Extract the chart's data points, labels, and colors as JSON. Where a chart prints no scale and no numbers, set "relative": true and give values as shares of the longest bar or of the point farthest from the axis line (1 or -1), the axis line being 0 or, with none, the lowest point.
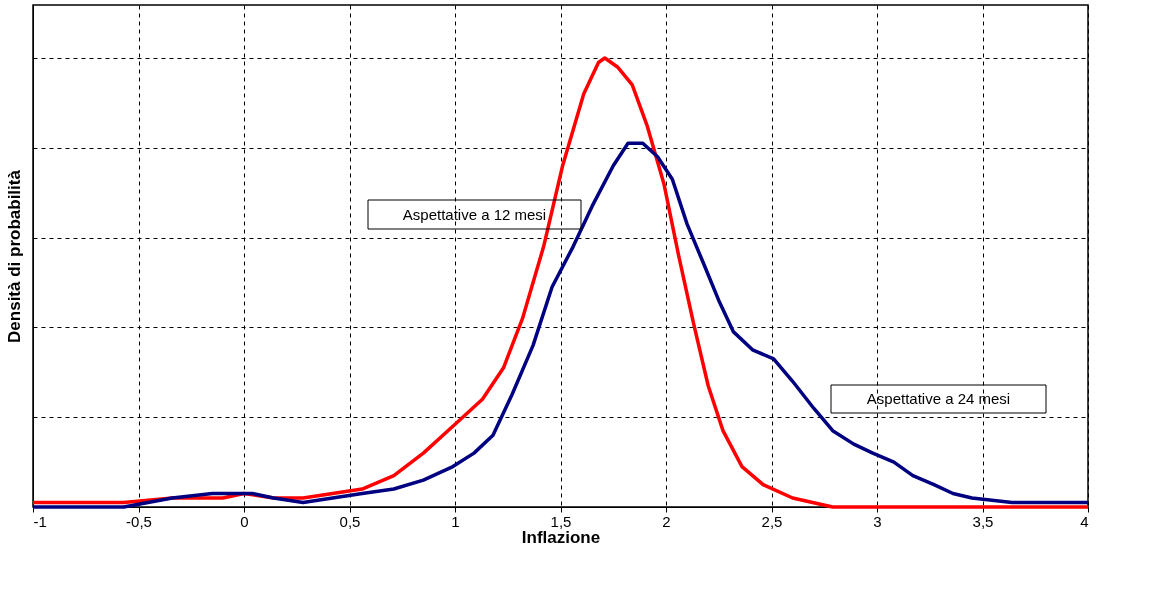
{
  "chart_data": {
    "type": "line",
    "xlabel": "Inflazione",
    "ylabel": "Densità di probabilità",
    "relative": true,
    "grid": true,
    "legend": false,
    "line_style": "solid",
    "marker": "none",
    "xlim": [
      -1,
      4
    ],
    "xticks": [
      -1,
      {
        "value": -0.5,
        "label": "-0,5"
      },
      0,
      {
        "value": 0.5,
        "label": "0,5"
      },
      1,
      {
        "value": 1.5,
        "label": "1,5"
      },
      2,
      {
        "value": 2.5,
        "label": "2,5"
      },
      3,
      {
        "value": 3.5,
        "label": "3,5"
      },
      4
    ],
    "series": [
      {
        "name": "Aspettative a 12 mesi",
        "color": "#ff0000",
        "x": [
          -1,
          -0.57,
          -0.34,
          -0.1,
          0.0,
          0.14,
          0.28,
          0.42,
          0.56,
          0.71,
          0.85,
          0.99,
          1.13,
          1.23,
          1.32,
          1.42,
          1.51,
          1.61,
          1.68,
          1.71,
          1.77,
          1.84,
          1.91,
          1.99,
          2.06,
          2.13,
          2.2,
          2.27,
          2.36,
          2.46,
          2.6,
          2.79,
          2.98,
          4
        ],
        "values": [
          0.01,
          0.01,
          0.02,
          0.02,
          0.03,
          0.02,
          0.02,
          0.03,
          0.04,
          0.07,
          0.12,
          0.18,
          0.24,
          0.31,
          0.42,
          0.58,
          0.76,
          0.92,
          0.99,
          1,
          0.98,
          0.94,
          0.85,
          0.72,
          0.56,
          0.41,
          0.27,
          0.17,
          0.09,
          0.05,
          0.02,
          0.0,
          0,
          0
        ]
      },
      {
        "name": "Aspettative a 24 mesi",
        "color": "#000080",
        "x": [
          -1,
          -0.57,
          -0.34,
          -0.15,
          0.04,
          0.14,
          0.28,
          0.42,
          0.56,
          0.71,
          0.85,
          0.99,
          1.09,
          1.18,
          1.27,
          1.37,
          1.46,
          1.56,
          1.65,
          1.75,
          1.82,
          1.89,
          1.96,
          2.03,
          2.1,
          2.18,
          2.25,
          2.32,
          2.41,
          2.51,
          2.6,
          2.7,
          2.79,
          2.89,
          2.98,
          3.08,
          3.17,
          3.27,
          3.36,
          3.45,
          3.64,
          4
        ],
        "values": [
          0,
          0.0,
          0.02,
          0.03,
          0.03,
          0.02,
          0.01,
          0.02,
          0.03,
          0.04,
          0.06,
          0.09,
          0.12,
          0.16,
          0.25,
          0.36,
          0.49,
          0.58,
          0.67,
          0.76,
          0.81,
          0.81,
          0.78,
          0.73,
          0.63,
          0.54,
          0.46,
          0.39,
          0.35,
          0.33,
          0.28,
          0.22,
          0.17,
          0.14,
          0.12,
          0.1,
          0.07,
          0.05,
          0.03,
          0.02,
          0.01,
          0.01
        ]
      }
    ]
  }
}
